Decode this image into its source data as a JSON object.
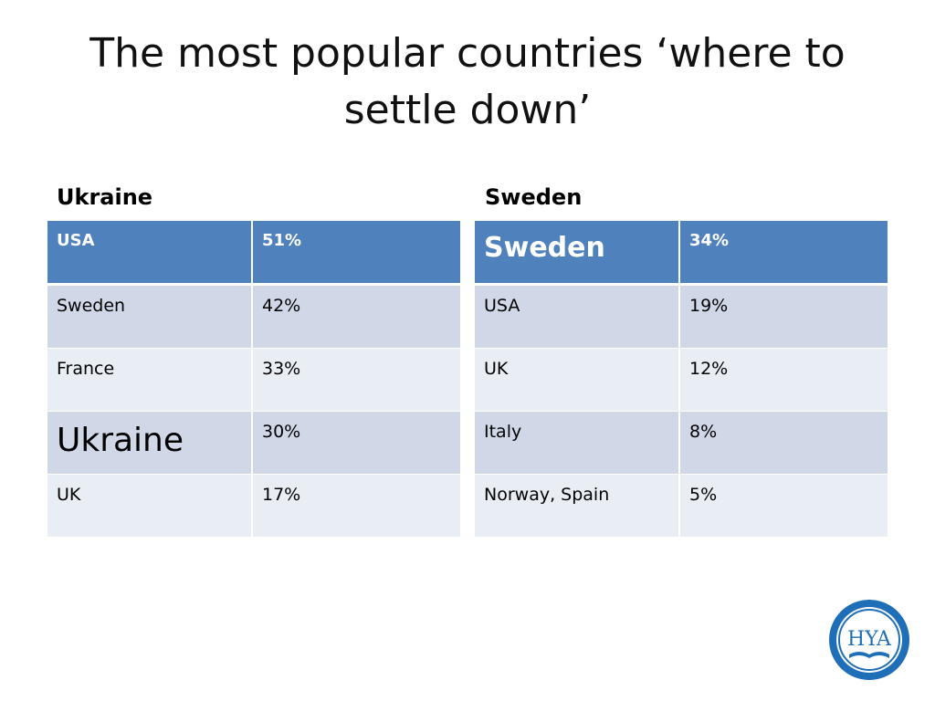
{
  "title": "The most popular countries ‘where to settle down’",
  "left": {
    "heading": "Ukraine",
    "rows": [
      {
        "country": "USA",
        "value": "51%"
      },
      {
        "country": "Sweden",
        "value": "42%"
      },
      {
        "country": "France",
        "value": "33%"
      },
      {
        "country": "Ukraine",
        "value": "30%"
      },
      {
        "country": "UK",
        "value": "17%"
      }
    ]
  },
  "right": {
    "heading": "Sweden",
    "rows": [
      {
        "country": "Sweden",
        "value": "34%"
      },
      {
        "country": "USA",
        "value": "19%"
      },
      {
        "country": "UK",
        "value": "12%"
      },
      {
        "country": "Italy",
        "value": "8%"
      },
      {
        "country": "Norway, Spain",
        "value": "5%"
      }
    ]
  },
  "logo": {
    "text": "HYA"
  },
  "colors": {
    "header": "#4f81bd",
    "row_dark": "#d0d8e8",
    "row_light": "#e9edf4",
    "logo_blue": "#1f6fb8"
  }
}
